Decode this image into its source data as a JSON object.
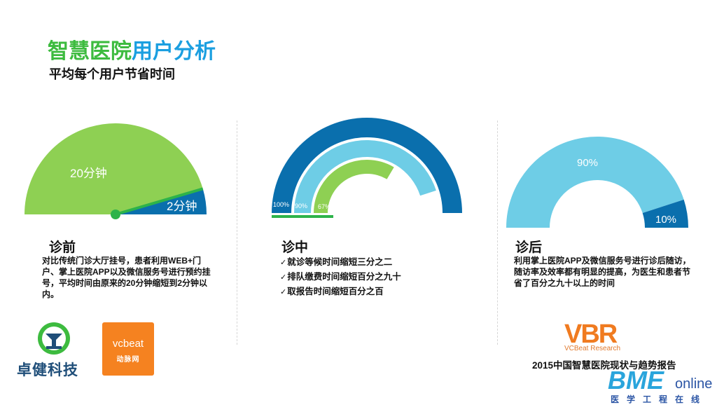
{
  "header": {
    "title_part1": "智慧医院",
    "title_part2": "用户分析",
    "subtitle": "平均每个用户节省时间"
  },
  "colors": {
    "green": "#8ed053",
    "dark_blue": "#0a6fad",
    "light_blue": "#6ecde6",
    "accent_green": "#2db34a",
    "orange": "#f58220"
  },
  "sections": {
    "before": {
      "heading": "诊前",
      "description": "对比传统门诊大厅挂号，患者利用WEB+门户、掌上医院APP以及微信服务号进行预约挂号，平均时间由原来的20分钟缩短到2分钟以内。",
      "gauge": {
        "label_major": "20分钟",
        "label_minor": "2分钟",
        "major_value": 20,
        "minor_value": 2
      }
    },
    "during": {
      "heading": "诊中",
      "items": [
        "就诊等候时间缩短三分之二",
        "排队缴费时间缩短百分之九十",
        "取报告时间缩短百分之百"
      ],
      "gauge": {
        "rings": [
          {
            "label": "100%",
            "percent": 100
          },
          {
            "label": "90%",
            "percent": 90
          },
          {
            "label": "67%",
            "percent": 67
          }
        ]
      }
    },
    "after": {
      "heading": "诊后",
      "description": "利用掌上医院APP及微信服务号进行诊后随访，随访率及效率都有明显的提高，为医生和患者节省了百分之九十以上的时间",
      "gauge": {
        "label_major": "90%",
        "label_minor": "10%",
        "major_percent": 90,
        "minor_percent": 10
      }
    }
  },
  "logos": {
    "zhuojian": "卓健科技",
    "vcbeat_en": "vcbeat",
    "vcbeat_cn": "动脉网",
    "vbr": "VBR",
    "vbr_sub": "VCBeat Research",
    "report_title": "2015中国智慧医院现状与趋势报告",
    "bme": "BME",
    "bme_online": "online",
    "bme_sub": "医学工程在线"
  }
}
